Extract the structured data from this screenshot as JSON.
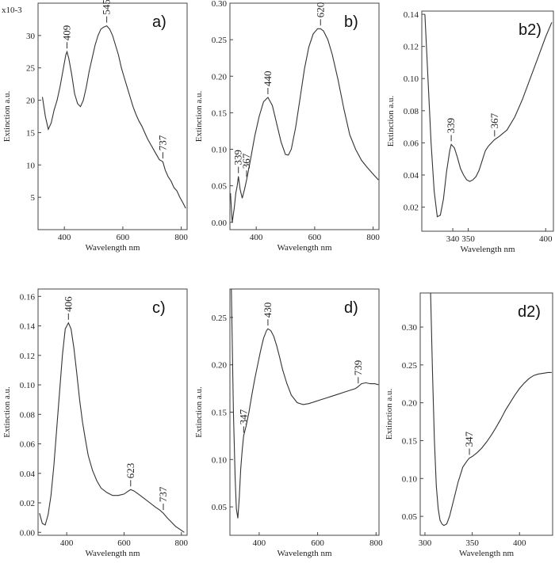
{
  "chart_data": [
    {
      "id": "a",
      "type": "line",
      "panel_label": "a)",
      "scale_note": "x10-3",
      "xlabel": "Wavelength nm",
      "ylabel": "Extinction a.u.",
      "xlim": [
        310,
        820
      ],
      "ylim": [
        0,
        35
      ],
      "xticks": [
        400,
        600,
        800
      ],
      "xtick_labels": [
        "400",
        "600",
        "800"
      ],
      "yticks": [
        5,
        10,
        15,
        20,
        25,
        30
      ],
      "ytick_labels": [
        "5",
        "10",
        "15",
        "20",
        "25",
        "30"
      ],
      "series": [
        {
          "name": "a",
          "x": [
            325,
            335,
            345,
            355,
            365,
            375,
            385,
            395,
            405,
            409,
            415,
            425,
            435,
            445,
            455,
            465,
            475,
            485,
            495,
            505,
            515,
            525,
            535,
            545,
            555,
            565,
            575,
            585,
            595,
            605,
            615,
            625,
            635,
            645,
            655,
            665,
            675,
            685,
            695,
            705,
            715,
            725,
            737,
            745,
            755,
            765,
            775,
            785,
            795,
            805,
            815
          ],
          "y": [
            20.5,
            17.5,
            15.5,
            16.5,
            18.5,
            20,
            22,
            24.5,
            27,
            27.5,
            26.5,
            24,
            21,
            19.5,
            19,
            20,
            22,
            24.5,
            26.5,
            28.5,
            30,
            31,
            31.3,
            31.5,
            31,
            30,
            28.5,
            27,
            25,
            23.5,
            22,
            20.5,
            19,
            17.8,
            16.8,
            16,
            15,
            14,
            13.2,
            12.4,
            11.6,
            10.8,
            10.5,
            9.2,
            8.2,
            7.5,
            6.5,
            6,
            5,
            4.2,
            3.3
          ]
        }
      ],
      "peaks": [
        {
          "label": "409",
          "x": 409,
          "y": 27.5
        },
        {
          "label": "545",
          "x": 545,
          "y": 31.5
        },
        {
          "label": "737",
          "x": 737,
          "y": 10.5
        }
      ]
    },
    {
      "id": "b",
      "type": "line",
      "panel_label": "b)",
      "xlabel": "Wavelength nm",
      "ylabel": "Extinction a.u.",
      "xlim": [
        310,
        820
      ],
      "ylim": [
        -0.01,
        0.3
      ],
      "xticks": [
        400,
        600,
        800
      ],
      "xtick_labels": [
        "400",
        "600",
        "800"
      ],
      "yticks": [
        0,
        0.05,
        0.1,
        0.15,
        0.2,
        0.25,
        0.3
      ],
      "ytick_labels": [
        "0.00",
        "0.05",
        "0.10",
        "0.15",
        "0.20",
        "0.25",
        "0.30"
      ],
      "series": [
        {
          "name": "b",
          "x": [
            312,
            318,
            325,
            330,
            335,
            339,
            345,
            352,
            360,
            367,
            380,
            395,
            410,
            425,
            440,
            455,
            470,
            485,
            500,
            510,
            520,
            535,
            550,
            565,
            580,
            595,
            610,
            620,
            630,
            645,
            660,
            680,
            700,
            720,
            740,
            760,
            780,
            800,
            818
          ],
          "y": [
            0.04,
            0.0,
            0.02,
            0.04,
            0.05,
            0.063,
            0.045,
            0.033,
            0.045,
            0.058,
            0.085,
            0.118,
            0.145,
            0.165,
            0.171,
            0.16,
            0.135,
            0.11,
            0.093,
            0.092,
            0.1,
            0.13,
            0.17,
            0.21,
            0.24,
            0.258,
            0.265,
            0.265,
            0.262,
            0.25,
            0.23,
            0.195,
            0.155,
            0.12,
            0.1,
            0.085,
            0.075,
            0.066,
            0.058
          ]
        }
      ],
      "peaks": [
        {
          "label": "339",
          "x": 339,
          "y": 0.063
        },
        {
          "label": "367",
          "x": 367,
          "y": 0.058
        },
        {
          "label": "440",
          "x": 440,
          "y": 0.171
        },
        {
          "label": "620",
          "x": 620,
          "y": 0.265
        }
      ]
    },
    {
      "id": "b2",
      "type": "line",
      "panel_label": "b2)",
      "xlabel": "Wavelength nm",
      "ylabel": "Extinction a.u.",
      "xlim": [
        320,
        405
      ],
      "ylim": [
        0.005,
        0.142
      ],
      "xticks": [
        340,
        350,
        400
      ],
      "xtick_labels": [
        "340",
        "350",
        "400"
      ],
      "yticks": [
        0.02,
        0.04,
        0.06,
        0.08,
        0.1,
        0.12,
        0.14
      ],
      "ytick_labels": [
        "0.02",
        "0.04",
        "0.06",
        "0.08",
        "0.10",
        "0.12",
        "0.14"
      ],
      "series": [
        {
          "name": "b2",
          "x": [
            322,
            324,
            326,
            328,
            330,
            332,
            334,
            336,
            338,
            339,
            341,
            343,
            345,
            347,
            349,
            351,
            353,
            355,
            357,
            359,
            361,
            363,
            365,
            367,
            370,
            375,
            380,
            385,
            390,
            395,
            400,
            404
          ],
          "y": [
            0.14,
            0.1,
            0.06,
            0.03,
            0.014,
            0.015,
            0.025,
            0.042,
            0.055,
            0.059,
            0.057,
            0.051,
            0.044,
            0.04,
            0.037,
            0.036,
            0.037,
            0.039,
            0.043,
            0.049,
            0.055,
            0.058,
            0.06,
            0.062,
            0.064,
            0.068,
            0.076,
            0.087,
            0.1,
            0.113,
            0.126,
            0.135
          ]
        }
      ],
      "peaks": [
        {
          "label": "339",
          "x": 339,
          "y": 0.059
        },
        {
          "label": "367",
          "x": 367,
          "y": 0.062
        }
      ]
    },
    {
      "id": "c",
      "type": "line",
      "panel_label": "c)",
      "xlabel": "Wavelength nm",
      "ylabel": "Extinction a.u.",
      "xlim": [
        300,
        820
      ],
      "ylim": [
        -0.002,
        0.165
      ],
      "xticks": [
        400,
        600,
        800
      ],
      "xtick_labels": [
        "400",
        "600",
        "800"
      ],
      "yticks": [
        0,
        0.02,
        0.04,
        0.06,
        0.08,
        0.1,
        0.12,
        0.14,
        0.16
      ],
      "ytick_labels": [
        "0.00",
        "0.02",
        "0.04",
        "0.06",
        "0.08",
        "0.10",
        "0.12",
        "0.14",
        "0.16"
      ],
      "series": [
        {
          "name": "c",
          "x": [
            305,
            315,
            325,
            335,
            345,
            355,
            365,
            375,
            385,
            395,
            406,
            415,
            425,
            435,
            445,
            455,
            465,
            475,
            490,
            505,
            520,
            540,
            560,
            580,
            600,
            615,
            623,
            635,
            650,
            670,
            690,
            710,
            725,
            737,
            750,
            765,
            780,
            795,
            810
          ],
          "y": [
            0.013,
            0.006,
            0.005,
            0.012,
            0.025,
            0.045,
            0.07,
            0.095,
            0.12,
            0.138,
            0.142,
            0.138,
            0.125,
            0.108,
            0.09,
            0.075,
            0.063,
            0.052,
            0.042,
            0.035,
            0.03,
            0.027,
            0.025,
            0.025,
            0.026,
            0.028,
            0.029,
            0.028,
            0.026,
            0.023,
            0.02,
            0.017,
            0.015,
            0.013,
            0.01,
            0.007,
            0.004,
            0.002,
            0.0
          ]
        }
      ],
      "peaks": [
        {
          "label": "406",
          "x": 406,
          "y": 0.142
        },
        {
          "label": "623",
          "x": 623,
          "y": 0.029
        },
        {
          "label": "737",
          "x": 737,
          "y": 0.013
        }
      ]
    },
    {
      "id": "d",
      "type": "line",
      "panel_label": "d)",
      "xlabel": "Wavelength nm",
      "ylabel": "Extinction a.u.",
      "xlim": [
        300,
        810
      ],
      "ylim": [
        0.02,
        0.28
      ],
      "xticks": [
        400,
        600,
        800
      ],
      "xtick_labels": [
        "400",
        "600",
        "800"
      ],
      "yticks": [
        0.05,
        0.1,
        0.15,
        0.2,
        0.25
      ],
      "ytick_labels": [
        "0.05",
        "0.10",
        "0.15",
        "0.20",
        "0.25"
      ],
      "series": [
        {
          "name": "d",
          "x": [
            305,
            312,
            318,
            322,
            327,
            332,
            337,
            342,
            347,
            355,
            365,
            375,
            385,
            395,
            405,
            415,
            425,
            430,
            440,
            450,
            460,
            470,
            480,
            495,
            510,
            530,
            550,
            570,
            590,
            610,
            630,
            650,
            670,
            690,
            710,
            730,
            739,
            750,
            765,
            780,
            795,
            808
          ],
          "y": [
            0.28,
            0.15,
            0.08,
            0.048,
            0.038,
            0.06,
            0.09,
            0.11,
            0.125,
            0.135,
            0.15,
            0.168,
            0.185,
            0.2,
            0.215,
            0.228,
            0.236,
            0.238,
            0.236,
            0.23,
            0.22,
            0.208,
            0.195,
            0.18,
            0.168,
            0.16,
            0.158,
            0.159,
            0.161,
            0.163,
            0.165,
            0.167,
            0.169,
            0.171,
            0.173,
            0.175,
            0.177,
            0.18,
            0.181,
            0.18,
            0.18,
            0.179
          ]
        }
      ],
      "peaks": [
        {
          "label": "347",
          "x": 347,
          "y": 0.125
        },
        {
          "label": "430",
          "x": 430,
          "y": 0.238
        },
        {
          "label": "739",
          "x": 739,
          "y": 0.177
        }
      ]
    },
    {
      "id": "d2",
      "type": "line",
      "panel_label": "d2)",
      "xlabel": "Wavelength nm",
      "ylabel": "Extinction a.u.",
      "xlim": [
        295,
        435
      ],
      "ylim": [
        0.025,
        0.345
      ],
      "xticks": [
        300,
        350,
        400
      ],
      "xtick_labels": [
        "300",
        "350",
        "400"
      ],
      "yticks": [
        0.05,
        0.1,
        0.15,
        0.2,
        0.25,
        0.3
      ],
      "ytick_labels": [
        "0.05",
        "0.10",
        "0.15",
        "0.20",
        "0.25",
        "0.30"
      ],
      "series": [
        {
          "name": "d2",
          "x": [
            306,
            308,
            310,
            312,
            314,
            316,
            318,
            320,
            323,
            326,
            330,
            335,
            340,
            345,
            347,
            350,
            355,
            360,
            365,
            370,
            375,
            380,
            385,
            390,
            395,
            400,
            405,
            410,
            415,
            420,
            425,
            430,
            434
          ],
          "y": [
            0.345,
            0.24,
            0.15,
            0.09,
            0.06,
            0.045,
            0.04,
            0.038,
            0.04,
            0.05,
            0.07,
            0.095,
            0.115,
            0.124,
            0.127,
            0.129,
            0.134,
            0.14,
            0.148,
            0.157,
            0.167,
            0.178,
            0.19,
            0.2,
            0.21,
            0.219,
            0.226,
            0.232,
            0.236,
            0.238,
            0.239,
            0.24,
            0.24
          ]
        }
      ],
      "peaks": [
        {
          "label": "347",
          "x": 347,
          "y": 0.127
        }
      ]
    }
  ]
}
